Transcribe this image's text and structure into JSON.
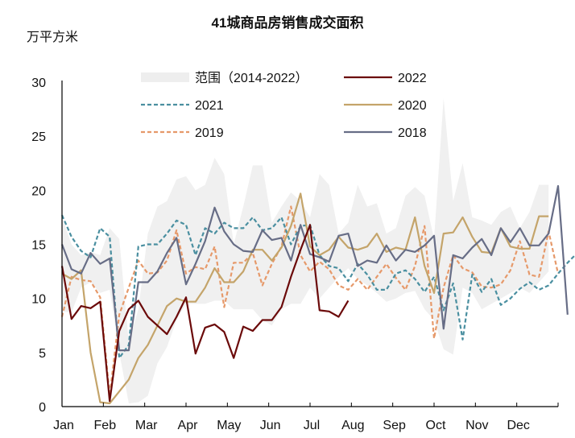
{
  "chart_data": {
    "type": "line",
    "title": "41城商品房销售成交面积",
    "ylabel": "万平方米",
    "xlabel": "",
    "ylim": [
      0,
      30
    ],
    "yticks": [
      0,
      5,
      10,
      15,
      20,
      25,
      30
    ],
    "xticks": [
      "Jan",
      "Feb",
      "Mar",
      "Apr",
      "May",
      "Jun",
      "Jul",
      "Aug",
      "Sep",
      "Oct",
      "Nov",
      "Dec"
    ],
    "x_unit": "week",
    "grid": false,
    "legend": {
      "position": "top-inside",
      "entries": [
        {
          "label": "范围（2014-2022）",
          "style": "area",
          "color": "#eeeeee"
        },
        {
          "label": "2022",
          "style": "solid",
          "color": "#6b0a0a"
        },
        {
          "label": "2021",
          "style": "dashed",
          "color": "#4a8fa0"
        },
        {
          "label": "2020",
          "style": "solid",
          "color": "#c4a46a"
        },
        {
          "label": "2019",
          "style": "dashed",
          "color": "#e6996a"
        },
        {
          "label": "2018",
          "style": "solid",
          "color": "#676d86"
        }
      ]
    },
    "range_band": {
      "label": "范围（2014-2022）",
      "upper": [
        17.5,
        15,
        14,
        14.3,
        14,
        16.5,
        15.5,
        6,
        9,
        16,
        18.5,
        19,
        21,
        21.3,
        20,
        20.5,
        23,
        21.5,
        15,
        18.5,
        22.3,
        22.3,
        17,
        18.5,
        19.8,
        19,
        17.5,
        21.5,
        20.5,
        16,
        17,
        20.5,
        18.5,
        18.8,
        16,
        16.5,
        19.5,
        20.3,
        19.5,
        15.5,
        28.5,
        19,
        22.5,
        17.5,
        17.2,
        16.8,
        18,
        18.5,
        16.5,
        18,
        20.5,
        20.5
      ],
      "lower": [
        8.8,
        8.7,
        11,
        11.5,
        10.5,
        10.8,
        5,
        0.3,
        0.4,
        1,
        4,
        5.5,
        8,
        9.5,
        9.5,
        9.5,
        9.8,
        9.8,
        9,
        9,
        9,
        8,
        7.5,
        9,
        9.5,
        9.5,
        11,
        10,
        11,
        12,
        12.8,
        11.8,
        11.2,
        10.5,
        9.7,
        10,
        10.5,
        10.7,
        9,
        8,
        5.3,
        4.8,
        11,
        10.5,
        9,
        9.5,
        10,
        10.5,
        11,
        10.5,
        11.5,
        12.5
      ]
    },
    "series": [
      {
        "name": "2022",
        "values": [
          13,
          8.1,
          9.3,
          9.1,
          9.7,
          0.5,
          7,
          9,
          9.8,
          8.3,
          7.5,
          6.7,
          8.3,
          10.1,
          4.9,
          7.3,
          7.6,
          6.9,
          4.5,
          7.4,
          7,
          8,
          8,
          9.2,
          12,
          14.5,
          16.8,
          8.9,
          8.8,
          8.3,
          9.8
        ]
      },
      {
        "name": "2021",
        "values": [
          17.7,
          15.7,
          14.4,
          13.8,
          16.5,
          15.7,
          4.5,
          5.7,
          14.8,
          15,
          15,
          16,
          17.2,
          16.8,
          14,
          16.5,
          16,
          17,
          16.5,
          16.5,
          17.5,
          16.3,
          16.5,
          17.5,
          15,
          16.7,
          16.8,
          14,
          13,
          12.8,
          11.6,
          13.2,
          12.2,
          10.8,
          10.8,
          12.3,
          12.6,
          11.8,
          10.6,
          12,
          8.9,
          11.4,
          6.2,
          12.2,
          10.6,
          11.8,
          9.4,
          10,
          10.9,
          11.5,
          10.8,
          11.2,
          12.3,
          13.3,
          14.2,
          13.5
        ]
      },
      {
        "name": "2020",
        "values": [
          12.3,
          11.8,
          12.6,
          5,
          0.4,
          0.3,
          1.4,
          2.5,
          4.5,
          5.7,
          7.5,
          9.3,
          10,
          9.7,
          9.7,
          11,
          12.8,
          11.5,
          11.5,
          12.5,
          14.5,
          14.5,
          13.5,
          14.7,
          16.7,
          19.7,
          14.8,
          14,
          14.5,
          15.7,
          14.7,
          14.5,
          14.8,
          16,
          14.3,
          14.7,
          14.5,
          17.5,
          13,
          10.5,
          16,
          16.1,
          17.5,
          15.7,
          14.3,
          14.2,
          16.5,
          14.8,
          14.6,
          14.6,
          17.6,
          17.6
        ]
      },
      {
        "name": "2019",
        "values": [
          8.3,
          12,
          11.7,
          11.6,
          10.1,
          1,
          8.5,
          11,
          13.5,
          12.3,
          12.4,
          13.5,
          16.3,
          12.3,
          12.9,
          12.7,
          14.8,
          9.2,
          13.3,
          13.3,
          14.2,
          11.2,
          13.2,
          14.8,
          18.5,
          14,
          12.5,
          13.4,
          12.7,
          11.2,
          10.8,
          11.8,
          10.8,
          12,
          13.2,
          11.9,
          10.8,
          13,
          16.7,
          6.3,
          11,
          14,
          12.8,
          12.4,
          11.1,
          11,
          11.3,
          12.6,
          15.3,
          12.2,
          12,
          16.2,
          12.3
        ]
      },
      {
        "name": "2018",
        "values": [
          15,
          12.7,
          12.3,
          14.2,
          13.2,
          13.7,
          5.2,
          5.2,
          11.5,
          11.5,
          12.5,
          14.2,
          15.6,
          11.3,
          13.2,
          15.3,
          18.4,
          16.2,
          15,
          14.4,
          14.3,
          16.3,
          15.4,
          15.6,
          13.5,
          16.8,
          14.1,
          13.8,
          13.4,
          15.8,
          16,
          13,
          13.5,
          13.3,
          14.9,
          13.5,
          14.5,
          14.3,
          14.9,
          15.8,
          7.2,
          14,
          13.7,
          14.7,
          15.5,
          14,
          16.5,
          15.2,
          16.5,
          14.9,
          14.9,
          16,
          20.4,
          8.5
        ]
      }
    ]
  },
  "header": {
    "title": "41城商品房销售成交面积",
    "unit": "万平方米"
  }
}
